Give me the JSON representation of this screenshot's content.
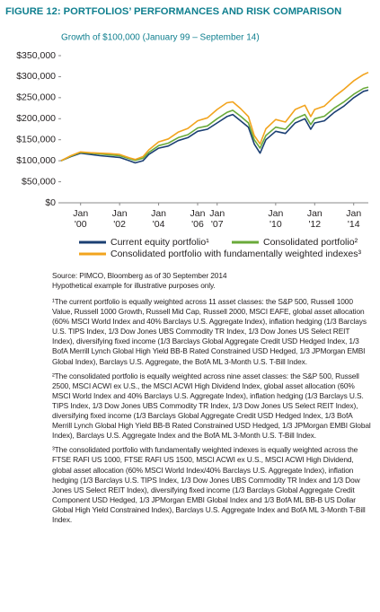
{
  "chart_data": {
    "type": "line",
    "title": "FIGURE 12: PORTFOLIOS’ PERFORMANCES AND RISK COMPARISON",
    "subtitle": "Growth of $100,000 (January 99 – September 14)",
    "xlim": [
      1999,
      2014.75
    ],
    "xticks": [
      {
        "value": 2000,
        "label": "Jan '00"
      },
      {
        "value": 2002,
        "label": "Jan '02"
      },
      {
        "value": 2004,
        "label": "Jan '04"
      },
      {
        "value": 2006,
        "label": "Jan '06"
      },
      {
        "value": 2007,
        "label": "Jan '07"
      },
      {
        "value": 2010,
        "label": "Jan '10"
      },
      {
        "value": 2012,
        "label": "Jan '12"
      },
      {
        "value": 2014,
        "label": "Jan '14"
      }
    ],
    "ylim": [
      0,
      350000
    ],
    "yticks": [
      {
        "value": 0,
        "label": "$0"
      },
      {
        "value": 50000,
        "label": "$50,000"
      },
      {
        "value": 100000,
        "label": "$100,000"
      },
      {
        "value": 150000,
        "label": "$150,000"
      },
      {
        "value": 200000,
        "label": "$200,000"
      },
      {
        "value": 250000,
        "label": "$250,000"
      },
      {
        "value": 300000,
        "label": "$300,000"
      },
      {
        "value": 350000,
        "label": "$350,000"
      }
    ],
    "grid": false,
    "x": [
      1999,
      1999.5,
      2000,
      2000.5,
      2001,
      2001.5,
      2002,
      2002.5,
      2002.8,
      2003.2,
      2003.5,
      2004,
      2004.5,
      2005,
      2005.5,
      2006,
      2006.5,
      2007,
      2007.5,
      2007.8,
      2008.2,
      2008.6,
      2008.9,
      2009.2,
      2009.5,
      2010,
      2010.5,
      2011,
      2011.5,
      2011.8,
      2012,
      2012.5,
      2013,
      2013.5,
      2014,
      2014.5,
      2014.75
    ],
    "series": [
      {
        "name": "Current equity portfolio¹",
        "color": "#1b3f73",
        "values": [
          100000,
          110000,
          118000,
          115000,
          112000,
          110000,
          108000,
          100000,
          95000,
          100000,
          115000,
          130000,
          135000,
          148000,
          155000,
          170000,
          175000,
          190000,
          205000,
          210000,
          195000,
          180000,
          140000,
          118000,
          150000,
          170000,
          165000,
          190000,
          200000,
          175000,
          190000,
          195000,
          215000,
          230000,
          250000,
          265000,
          268000
        ]
      },
      {
        "name": "Consolidated portfolio²",
        "color": "#6aaa3a",
        "values": [
          100000,
          111000,
          120000,
          118000,
          116000,
          114000,
          112000,
          105000,
          101000,
          106000,
          120000,
          136000,
          142000,
          155000,
          162000,
          178000,
          183000,
          200000,
          215000,
          220000,
          206000,
          190000,
          150000,
          130000,
          160000,
          180000,
          175000,
          200000,
          210000,
          186000,
          200000,
          206000,
          225000,
          240000,
          258000,
          272000,
          275000
        ]
      },
      {
        "name": "Consolidated portfolio with fundamentally weighted indexes³",
        "color": "#f2a41e",
        "values": [
          100000,
          112000,
          121000,
          119000,
          118000,
          117000,
          115000,
          107000,
          103000,
          110000,
          126000,
          145000,
          152000,
          168000,
          177000,
          195000,
          202000,
          222000,
          238000,
          240000,
          224000,
          205000,
          160000,
          140000,
          176000,
          198000,
          192000,
          222000,
          232000,
          205000,
          222000,
          230000,
          252000,
          270000,
          290000,
          305000,
          310000
        ]
      }
    ],
    "legend": "bottom",
    "source": "Source: PIMCO, Bloomberg as of 30 September 2014",
    "disclaimer": "Hypothetical example for illustrative purposes only.",
    "footnotes": [
      "¹The current portfolio is equally weighted across 11 asset classes: the S&P 500, Russell 1000 Value, Russell 1000 Growth, Russell Mid Cap, Russell 2000, MSCI EAFE, global asset allocation (60% MSCI World Index and 40% Barclays U.S. Aggregate Index), inflation hedging (1/3 Barclays U.S. TIPS Index, 1/3 Dow Jones UBS Commodity TR Index, 1/3 Dow Jones US Select REIT Index), diversifying fixed income (1/3 Barclays Global Aggregate Credit USD Hedged Index, 1/3 BofA Merrill Lynch Global High Yield BB-B Rated Constrained USD Hedged, 1/3 JPMorgan EMBI Global Index), Barclays U.S. Aggregate, the BofA ML 3-Month U.S. T-Bill Index.",
      "²The consolidated portfolio is equally weighted across nine asset classes: the S&P 500, Russell 2500, MSCI ACWI ex U.S., the MSCI ACWI High Dividend Index, global asset allocation (60% MSCI World Index and 40% Barclays U.S. Aggregate Index), inflation hedging (1/3 Barclays U.S. TIPS Index, 1/3 Dow Jones UBS Commodity TR Index, 1/3 Dow Jones US Select REIT Index), diversifying fixed income (1/3 Barclays Global Aggregate Credit USD Hedged Index, 1/3 BofA Merrill Lynch Global High Yield BB-B Rated Constrained USD Hedged, 1/3 JPMorgan EMBI Global Index), Barclays U.S. Aggregate Index and the BofA ML 3-Month U.S. T-Bill Index.",
      "³The consolidated portfolio with fundamentally weighted indexes is equally weighted across the FTSE RAFI US 1000, FTSE RAFI US 1500, MSCI ACWI ex U.S., MSCI ACWI High Dividend, global asset allocation (60% MSCI World Index/40% Barclays U.S. Aggregate Index), inflation hedging (1/3 Barclays U.S. TIPS Index, 1/3 Dow Jones UBS Commodity TR Index and 1/3 Dow Jones US Select REIT Index), diversifying fixed income (1/3 Barclays Global Aggregate Credit Component USD Hedged, 1/3 JPMorgan EMBI Global Index and 1/3 BofA ML BB-B US Dollar Global High Yield Constrained Index), Barclays U.S. Aggregate Index and BofA ML 3-Month T-Bill Index."
    ]
  }
}
